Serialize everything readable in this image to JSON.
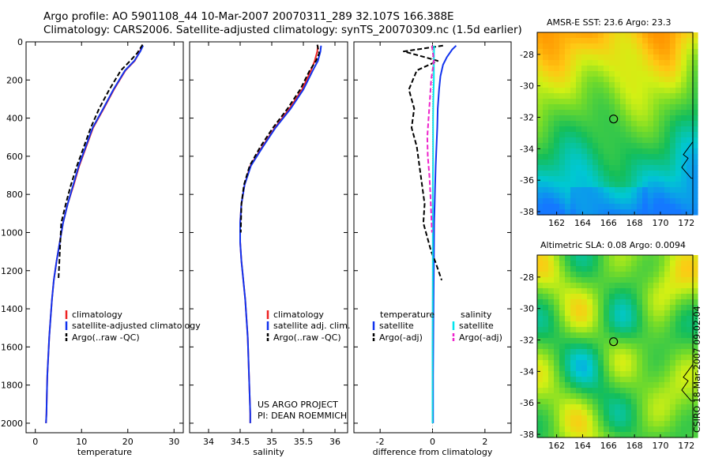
{
  "header": {
    "line1": "Argo profile: AO 5901108_44 10-Mar-2007 20070311_289 32.107S 166.388E",
    "line2": "Climatology: CARS2006. Satellite-adjusted climatology: synTS_20070309.nc (1.5d earlier)"
  },
  "project": {
    "line1": "US ARGO PROJECT",
    "line2": "PI: DEAN ROEMMICH"
  },
  "stamp": "CSIRO 18-Mar-2007 09:02:04",
  "colors": {
    "climatology": "#ee2222",
    "satellite": "#1133ee",
    "argo": "#000000",
    "salinity_satellite": "#00e5ee",
    "salinity_argo": "#ee22cc"
  },
  "chart_data": [
    {
      "type": "line",
      "id": "temperature",
      "xlabel": "temperature",
      "ylabel": "",
      "xlim": [
        -2,
        32
      ],
      "ylim": [
        2050,
        0
      ],
      "xticks": [
        0,
        10,
        20,
        30
      ],
      "yticks": [
        0,
        200,
        400,
        600,
        800,
        1000,
        1200,
        1400,
        1600,
        1800,
        2000
      ],
      "legend": [
        "climatology",
        "satellite-adjusted climatology",
        "Argo(..raw -QC)"
      ],
      "series": [
        {
          "name": "climatology",
          "style": "solid",
          "x": [
            23.2,
            22.6,
            21.5,
            19.5,
            17,
            14.8,
            12.5,
            11,
            9.5,
            8.3,
            7,
            6,
            5.3,
            4.6,
            4,
            3.6,
            3.3,
            3,
            2.8,
            2.6,
            2.5,
            2.4,
            2.3
          ],
          "y": [
            20,
            50,
            100,
            150,
            250,
            350,
            450,
            550,
            650,
            750,
            850,
            950,
            1050,
            1150,
            1250,
            1350,
            1450,
            1550,
            1650,
            1750,
            1850,
            1950,
            2000
          ]
        },
        {
          "name": "satellite-adjusted climatology",
          "style": "solid",
          "x": [
            23.3,
            22.7,
            21.4,
            19.4,
            16.9,
            14.7,
            12.4,
            10.9,
            9.4,
            8.2,
            7,
            6,
            5.3,
            4.6,
            4,
            3.6,
            3.3,
            3,
            2.8,
            2.6,
            2.5,
            2.4,
            2.3
          ],
          "y": [
            20,
            50,
            100,
            150,
            250,
            350,
            450,
            550,
            650,
            750,
            850,
            950,
            1050,
            1150,
            1250,
            1350,
            1450,
            1550,
            1650,
            1750,
            1850,
            1950,
            2000
          ]
        },
        {
          "name": "Argo(..raw -QC)",
          "style": "dashed",
          "x": [
            23.2,
            22,
            20.5,
            18.5,
            16,
            13.8,
            12,
            10.5,
            9,
            7.7,
            6.6,
            5.6,
            5
          ],
          "y": [
            15,
            60,
            100,
            150,
            250,
            350,
            450,
            550,
            650,
            750,
            850,
            950,
            1250
          ]
        }
      ]
    },
    {
      "type": "line",
      "id": "salinity",
      "xlabel": "salinity",
      "xlim": [
        33.7,
        36.2
      ],
      "ylim": [
        2050,
        0
      ],
      "xticks": [
        34,
        34.5,
        35,
        35.5,
        36
      ],
      "legend": [
        "climatology",
        "satellite adj. clim.",
        "Argo(..raw -QC)"
      ],
      "series": [
        {
          "name": "climatology",
          "style": "solid",
          "x": [
            35.73,
            35.72,
            35.68,
            35.62,
            35.48,
            35.28,
            35.05,
            34.85,
            34.66,
            34.57,
            34.52,
            34.5,
            34.5,
            34.52,
            34.55,
            34.58,
            34.6,
            34.62,
            34.63,
            34.64,
            34.65,
            34.66,
            34.66
          ],
          "y": [
            20,
            50,
            100,
            150,
            250,
            350,
            450,
            550,
            650,
            750,
            850,
            950,
            1050,
            1150,
            1250,
            1350,
            1450,
            1550,
            1650,
            1750,
            1850,
            1950,
            2000
          ]
        },
        {
          "name": "satellite adj. clim.",
          "style": "solid",
          "x": [
            35.78,
            35.77,
            35.73,
            35.65,
            35.5,
            35.3,
            35.06,
            34.86,
            34.67,
            34.57,
            34.52,
            34.5,
            34.5,
            34.52,
            34.55,
            34.58,
            34.6,
            34.62,
            34.63,
            34.64,
            34.65,
            34.66,
            34.66
          ],
          "y": [
            20,
            50,
            100,
            150,
            250,
            350,
            450,
            550,
            650,
            750,
            850,
            950,
            1050,
            1150,
            1250,
            1350,
            1450,
            1550,
            1650,
            1750,
            1850,
            1950,
            2000
          ]
        },
        {
          "name": "Argo(..raw -QC)",
          "style": "dashed",
          "x": [
            35.72,
            35.75,
            35.7,
            35.6,
            35.45,
            35.25,
            35.02,
            34.82,
            34.65,
            34.56,
            34.52,
            34.51
          ],
          "y": [
            15,
            60,
            100,
            150,
            250,
            350,
            450,
            550,
            650,
            750,
            850,
            1000
          ]
        }
      ]
    },
    {
      "type": "line",
      "id": "difference",
      "xlabel": "difference from climatology",
      "xlim": [
        -3,
        3
      ],
      "ylim": [
        2050,
        0
      ],
      "xticks": [
        -2,
        0,
        2
      ],
      "legend_headers": [
        "temperature",
        "salinity"
      ],
      "legend": [
        "satellite",
        "Argo(-adj)",
        "satellite",
        "Argo(-adj)"
      ],
      "series": [
        {
          "name": "temperature satellite",
          "style": "solid",
          "x": [
            0.9,
            0.75,
            0.55,
            0.4,
            0.3,
            0.25,
            0.2,
            0.18,
            0.15,
            0.12,
            0.1,
            0.08,
            0.06,
            0.05,
            0.04,
            0.03,
            0.02,
            0.02,
            0.02
          ],
          "y": [
            20,
            40,
            80,
            120,
            180,
            250,
            350,
            450,
            550,
            650,
            750,
            850,
            950,
            1150,
            1350,
            1550,
            1750,
            1950,
            2000
          ]
        },
        {
          "name": "temperature Argo(-adj)",
          "style": "dashed",
          "x": [
            0.4,
            -1.1,
            -0.3,
            0.2,
            -0.6,
            -0.9,
            -0.7,
            -0.8,
            -0.6,
            -0.5,
            -0.4,
            -0.3,
            -0.35,
            -0.25,
            -0.15,
            -0.05,
            0.1,
            0.35
          ],
          "y": [
            20,
            50,
            80,
            100,
            150,
            250,
            350,
            450,
            550,
            650,
            750,
            850,
            950,
            1000,
            1050,
            1100,
            1150,
            1250
          ]
        },
        {
          "name": "salinity satellite",
          "style": "solid",
          "x": [
            0.06,
            0.05,
            0.05,
            0.03,
            0.02,
            0.02,
            0.01,
            0.01,
            0,
            0
          ],
          "y": [
            20,
            100,
            200,
            300,
            400,
            600,
            800,
            1200,
            1600,
            2000
          ]
        },
        {
          "name": "salinity Argo(-adj)",
          "style": "dashed",
          "x": [
            -0.02,
            0.05,
            -0.05,
            -0.1,
            -0.15,
            -0.2,
            -0.18,
            -0.12,
            -0.08,
            -0.05,
            -0.02
          ],
          "y": [
            20,
            100,
            200,
            300,
            400,
            500,
            600,
            700,
            800,
            900,
            1000
          ]
        }
      ]
    },
    {
      "type": "heatmap",
      "id": "sst",
      "title": "AMSR-E SST: 23.6 Argo: 23.3",
      "xlim": [
        160.5,
        172.5
      ],
      "ylim": [
        -38.2,
        -26.6
      ],
      "xticks": [
        162,
        164,
        166,
        168,
        170,
        172
      ],
      "yticks": [
        -28,
        -30,
        -32,
        -34,
        -36,
        -38
      ],
      "marker": {
        "lon": 166.388,
        "lat": -32.107
      }
    },
    {
      "type": "heatmap",
      "id": "sla",
      "title": "Altimetric SLA: 0.08 Argo: 0.0094",
      "xlim": [
        160.5,
        172.5
      ],
      "ylim": [
        -38.2,
        -26.6
      ],
      "xticks": [
        162,
        164,
        166,
        168,
        170,
        172
      ],
      "yticks": [
        -28,
        -30,
        -32,
        -34,
        -36,
        -38
      ],
      "marker": {
        "lon": 166.388,
        "lat": -32.107
      }
    }
  ]
}
